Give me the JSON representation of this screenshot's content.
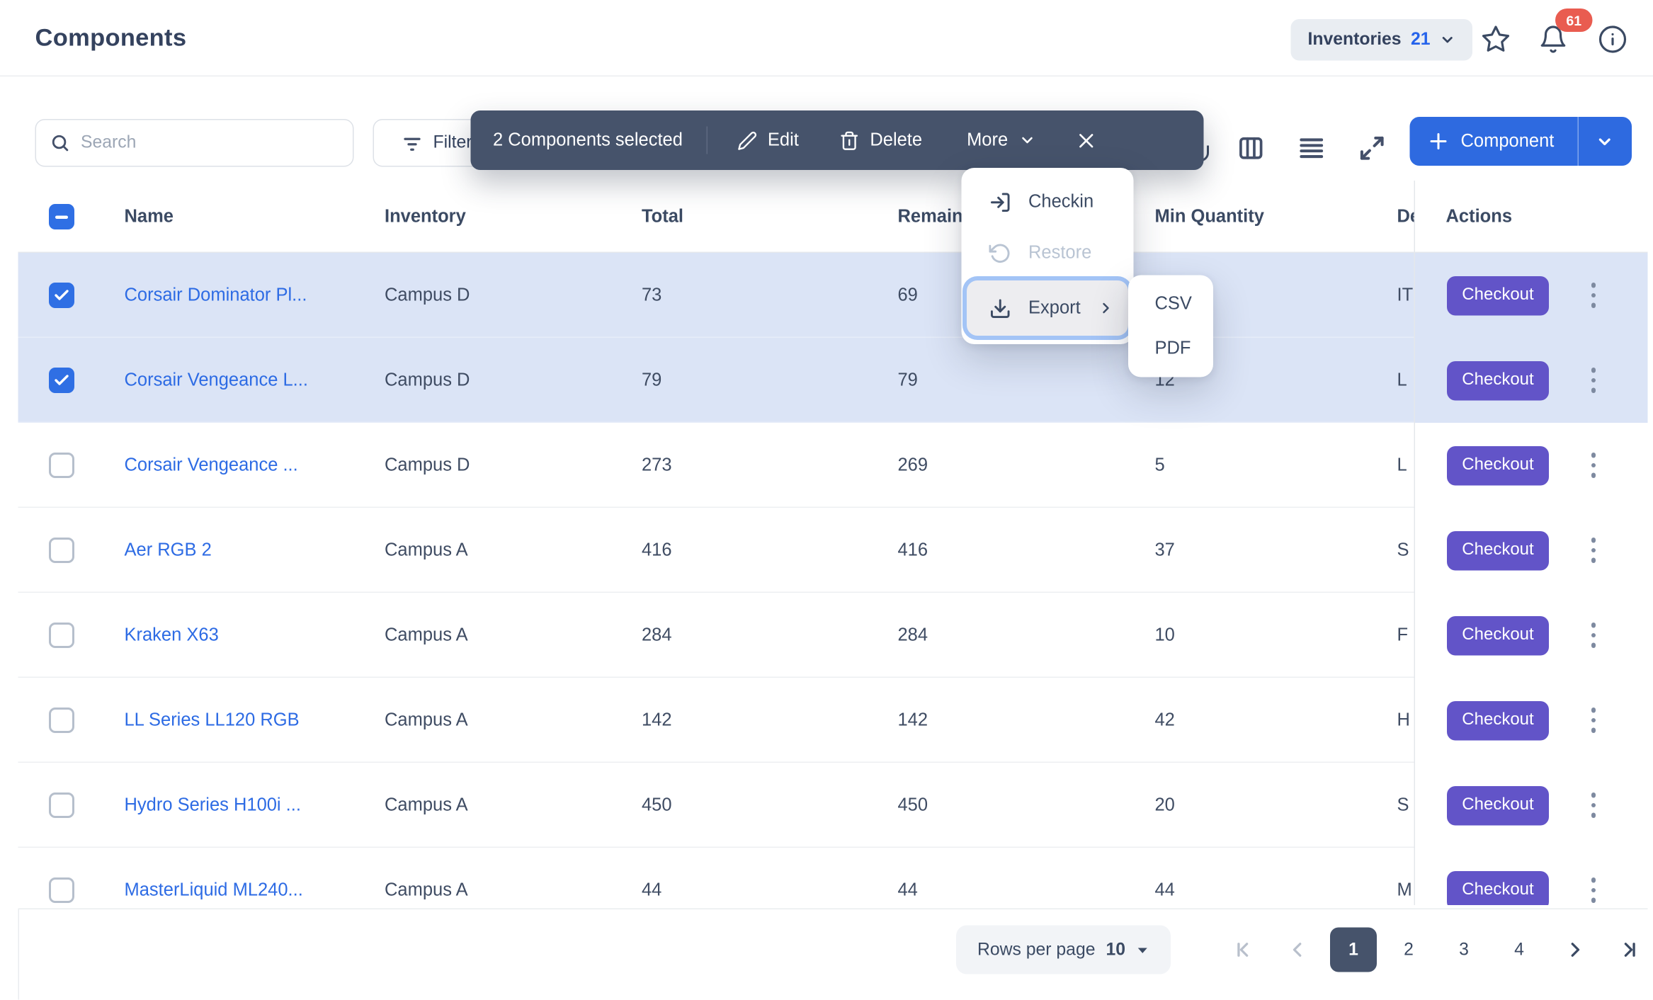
{
  "header": {
    "title": "Components",
    "inventories_label": "Inventories",
    "inventories_count": "21",
    "notification_count": "61"
  },
  "controls": {
    "search_placeholder": "Search",
    "filter_label": "Filter",
    "component_button_label": "Component"
  },
  "selection_toolbar": {
    "selected_text": "2 Components selected",
    "edit_label": "Edit",
    "delete_label": "Delete",
    "more_label": "More"
  },
  "more_menu": {
    "items": [
      {
        "label": "Checkin",
        "icon": "checkin-icon",
        "disabled": false
      },
      {
        "label": "Restore",
        "icon": "restore-icon",
        "disabled": true
      },
      {
        "label": "Export",
        "icon": "export-icon",
        "disabled": false,
        "has_submenu": true
      }
    ]
  },
  "export_submenu": {
    "items": [
      "CSV",
      "PDF"
    ]
  },
  "table": {
    "columns": [
      "Name",
      "Inventory",
      "Total",
      "Remaining",
      "Min Quantity",
      "Department",
      "Actions"
    ],
    "header_labels": {
      "name": "Name",
      "inventory": "Inventory",
      "total": "Total",
      "remaining": "Remaining",
      "min": "Min Quantity",
      "dept": "Department",
      "actions": "Actions"
    },
    "checkout_label": "Checkout",
    "rows": [
      {
        "selected": true,
        "name": "Corsair Dominator Pl...",
        "inventory": "Campus D",
        "total": "73",
        "remaining": "69",
        "min": "",
        "dept": "IT"
      },
      {
        "selected": true,
        "name": "Corsair Vengeance L...",
        "inventory": "Campus D",
        "total": "79",
        "remaining": "79",
        "min": "12",
        "dept": "L"
      },
      {
        "selected": false,
        "name": "Corsair Vengeance ...",
        "inventory": "Campus D",
        "total": "273",
        "remaining": "269",
        "min": "5",
        "dept": "L"
      },
      {
        "selected": false,
        "name": "Aer RGB 2",
        "inventory": "Campus A",
        "total": "416",
        "remaining": "416",
        "min": "37",
        "dept": "S"
      },
      {
        "selected": false,
        "name": "Kraken X63",
        "inventory": "Campus A",
        "total": "284",
        "remaining": "284",
        "min": "10",
        "dept": "F"
      },
      {
        "selected": false,
        "name": "LL Series LL120 RGB",
        "inventory": "Campus A",
        "total": "142",
        "remaining": "142",
        "min": "42",
        "dept": "H"
      },
      {
        "selected": false,
        "name": "Hydro Series H100i ...",
        "inventory": "Campus A",
        "total": "450",
        "remaining": "450",
        "min": "20",
        "dept": "S"
      },
      {
        "selected": false,
        "name": "MasterLiquid ML240...",
        "inventory": "Campus A",
        "total": "44",
        "remaining": "44",
        "min": "44",
        "dept": "M"
      }
    ]
  },
  "pagination": {
    "rows_per_page_label": "Rows per page",
    "rows_per_page_value": "10",
    "pages": [
      "1",
      "2",
      "3",
      "4"
    ],
    "active_page": "1"
  },
  "colors": {
    "accent_blue": "#2e6ae0",
    "link_blue": "#2d6be4",
    "checkout_purple": "#6254c8",
    "toolbar_slate": "#46536b",
    "selected_row": "#dbe4f6",
    "badge_red": "#e95c50"
  }
}
